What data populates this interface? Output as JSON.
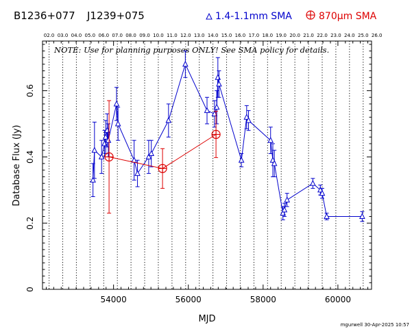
{
  "chart_data": {
    "type": "scatter",
    "source_names": [
      "B1236+077",
      "J1239+075"
    ],
    "xlabel": "MJD",
    "ylabel": "Database Flux (Jy)",
    "xlim": [
      52100,
      60900
    ],
    "ylim": [
      0,
      0.75
    ],
    "x_ticks": [
      54000,
      56000,
      58000,
      60000
    ],
    "y_ticks": [
      0,
      0.2,
      0.4,
      0.6
    ],
    "top_axis_labels": [
      "02.0",
      "03.0",
      "04.0",
      "05.0",
      "06.0",
      "07.0",
      "08.0",
      "09.0",
      "10.0",
      "11.0",
      "12.0",
      "13.0",
      "14.0",
      "15.0",
      "16.0",
      "17.0",
      "18.0",
      "19.0",
      "20.0",
      "21.0",
      "22.0",
      "23.0",
      "24.0",
      "25.0",
      "26.0"
    ],
    "top_axis_mjd": [
      52276,
      52641,
      53006,
      53371,
      53737,
      54102,
      54467,
      54832,
      55197,
      55563,
      55928,
      56293,
      56658,
      57023,
      57388,
      57754,
      58119,
      58484,
      58849,
      59215,
      59580,
      59945,
      60310,
      60676,
      61041
    ],
    "note": "NOTE: Use for planning purposes ONLY! See SMA policy for details.",
    "footer": "mgurwell 30-Apr-2025 10:57",
    "grid": "vertical dotted lines at each year",
    "legend_placement": "top",
    "series": [
      {
        "name": "1.4-1.1mm SMA",
        "color": "#0000cc",
        "marker": "triangle",
        "x": [
          53450,
          53490,
          53680,
          53760,
          53790,
          53830,
          53860,
          54080,
          54120,
          54550,
          54640,
          54940,
          55010,
          55470,
          55920,
          56500,
          56700,
          56760,
          56790,
          56820,
          57420,
          57560,
          57610,
          58200,
          58260,
          58300,
          58530,
          58570,
          58640,
          59330,
          59530,
          59580,
          59700,
          60650
        ],
        "y": [
          0.33,
          0.42,
          0.4,
          0.44,
          0.46,
          0.48,
          0.45,
          0.56,
          0.5,
          0.39,
          0.35,
          0.4,
          0.41,
          0.51,
          0.68,
          0.54,
          0.53,
          0.55,
          0.64,
          0.62,
          0.39,
          0.52,
          0.51,
          0.45,
          0.39,
          0.38,
          0.23,
          0.24,
          0.27,
          0.32,
          0.3,
          0.29,
          0.22,
          0.22
        ],
        "err": [
          0.05,
          0.085,
          0.05,
          0.04,
          0.05,
          0.05,
          0.05,
          0.05,
          0.05,
          0.06,
          0.04,
          0.05,
          0.04,
          0.05,
          0.04,
          0.04,
          0.04,
          0.05,
          0.06,
          0.04,
          0.02,
          0.035,
          0.03,
          0.04,
          0.05,
          0.04,
          0.02,
          0.02,
          0.02,
          0.015,
          0.015,
          0.015,
          0.01,
          0.015
        ]
      },
      {
        "name": "870μm SMA",
        "color": "#dd0000",
        "marker": "circle-plus",
        "x": [
          53880,
          55310,
          56740
        ],
        "y": [
          0.4,
          0.365,
          0.468
        ],
        "err": [
          0.17,
          0.06,
          0.07
        ]
      }
    ]
  }
}
